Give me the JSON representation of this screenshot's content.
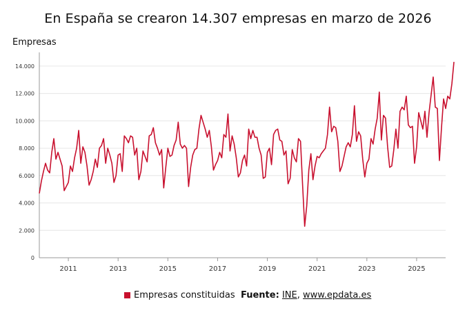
{
  "title": "En España se crearon 14.307 empresas en marzo de 2026",
  "colors": {
    "series": "#c8102e",
    "grid": "#e6e6e6",
    "axis": "#999999"
  },
  "legend": {
    "label": "Empresas constituidas"
  },
  "source": {
    "label": "Fuente:",
    "ine": "INE",
    "separator": ",",
    "epdata": "www.epdata.es"
  },
  "chart_data": {
    "type": "line",
    "title": "En España se crearon 14.307 empresas en marzo de 2026",
    "ylabel": "Empresas",
    "xlabel": "",
    "ylim": [
      0,
      15000
    ],
    "yticks": [
      0,
      2000,
      4000,
      6000,
      8000,
      10000,
      12000,
      14000
    ],
    "ytick_labels": [
      "0",
      "2.000",
      "4.000",
      "6.000",
      "8.000",
      "10.000",
      "12.000",
      "14.000"
    ],
    "xticks": [
      "2011",
      "2013",
      "2015",
      "2017",
      "2019",
      "2021",
      "2023",
      "2025"
    ],
    "grid": true,
    "legend_position": "bottom",
    "start": "2009-11",
    "end": "2026-03",
    "series": [
      {
        "name": "Empresas constituidas",
        "values": [
          4700,
          5600,
          6300,
          6900,
          6400,
          6200,
          7700,
          8700,
          7200,
          7700,
          7200,
          6700,
          4900,
          5200,
          5500,
          6700,
          6300,
          7300,
          8000,
          9300,
          6900,
          8100,
          7700,
          6700,
          5300,
          5700,
          6300,
          7200,
          6600,
          8000,
          8200,
          8700,
          6900,
          8000,
          7500,
          6900,
          5500,
          6000,
          7500,
          7600,
          6300,
          8900,
          8700,
          8400,
          8900,
          8800,
          7500,
          8000,
          5700,
          6300,
          7800,
          7400,
          7000,
          8900,
          9000,
          9500,
          8400,
          8000,
          7500,
          7900,
          5100,
          6600,
          8000,
          7400,
          7500,
          8200,
          8600,
          9900,
          8300,
          8000,
          8200,
          8000,
          5200,
          6600,
          7500,
          7900,
          8000,
          9400,
          10400,
          9900,
          9400,
          8800,
          9300,
          8100,
          6400,
          6800,
          7100,
          7700,
          7300,
          9000,
          8800,
          10500,
          7800,
          8900,
          8300,
          7300,
          5900,
          6200,
          7100,
          7500,
          6700,
          9400,
          8700,
          9300,
          8800,
          8800,
          8000,
          7500,
          5800,
          5900,
          7700,
          8000,
          6800,
          9000,
          9300,
          9400,
          8600,
          8500,
          7500,
          7800,
          5400,
          5800,
          7900,
          7300,
          7000,
          8700,
          8500,
          5300,
          2300,
          3800,
          6400,
          7600,
          5700,
          6700,
          7400,
          7300,
          7600,
          7800,
          8000,
          9000,
          11000,
          9200,
          9600,
          9500,
          8500,
          6300,
          6700,
          7400,
          8100,
          8400,
          8100,
          9000,
          11100,
          8500,
          9200,
          8900,
          7200,
          5900,
          6900,
          7200,
          8700,
          8300,
          9400,
          10200,
          12100,
          8600,
          10400,
          10200,
          8100,
          6600,
          6700,
          7900,
          9400,
          8000,
          10700,
          11000,
          10800,
          11800,
          9700,
          9500,
          9600,
          6900,
          8100,
          10600,
          10000,
          9400,
          10700,
          8800,
          10600,
          11900,
          13200,
          11000,
          10900,
          7100,
          9500,
          11600,
          10900,
          11800,
          11600,
          12700,
          14307
        ]
      }
    ]
  }
}
